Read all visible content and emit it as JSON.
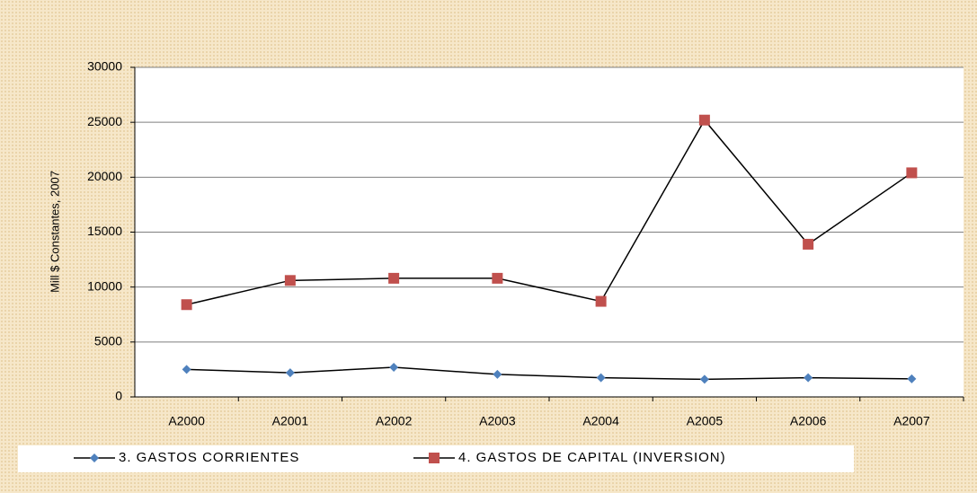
{
  "chart_data": {
    "type": "line",
    "y_label": "Mill $ Constantes, 2007",
    "categories": [
      "A2000",
      "A2001",
      "A2002",
      "A2003",
      "A2004",
      "A2005",
      "A2006",
      "A2007"
    ],
    "series": [
      {
        "name": "3. GASTOS CORRIENTES",
        "color": "#4f81bd",
        "marker": "diamond",
        "values": [
          2500,
          2200,
          2700,
          2050,
          1750,
          1600,
          1750,
          1650
        ]
      },
      {
        "name": "4.  GASTOS DE CAPITAL (INVERSION)",
        "color": "#c0504d",
        "marker": "square",
        "values": [
          8400,
          10600,
          10800,
          10800,
          8700,
          25200,
          13900,
          20400
        ]
      }
    ],
    "line_color": "#000000",
    "ylim": [
      0,
      30000
    ],
    "yticks": [
      0,
      5000,
      10000,
      15000,
      20000,
      25000,
      30000
    ],
    "grid": true,
    "legend": "bottom"
  }
}
